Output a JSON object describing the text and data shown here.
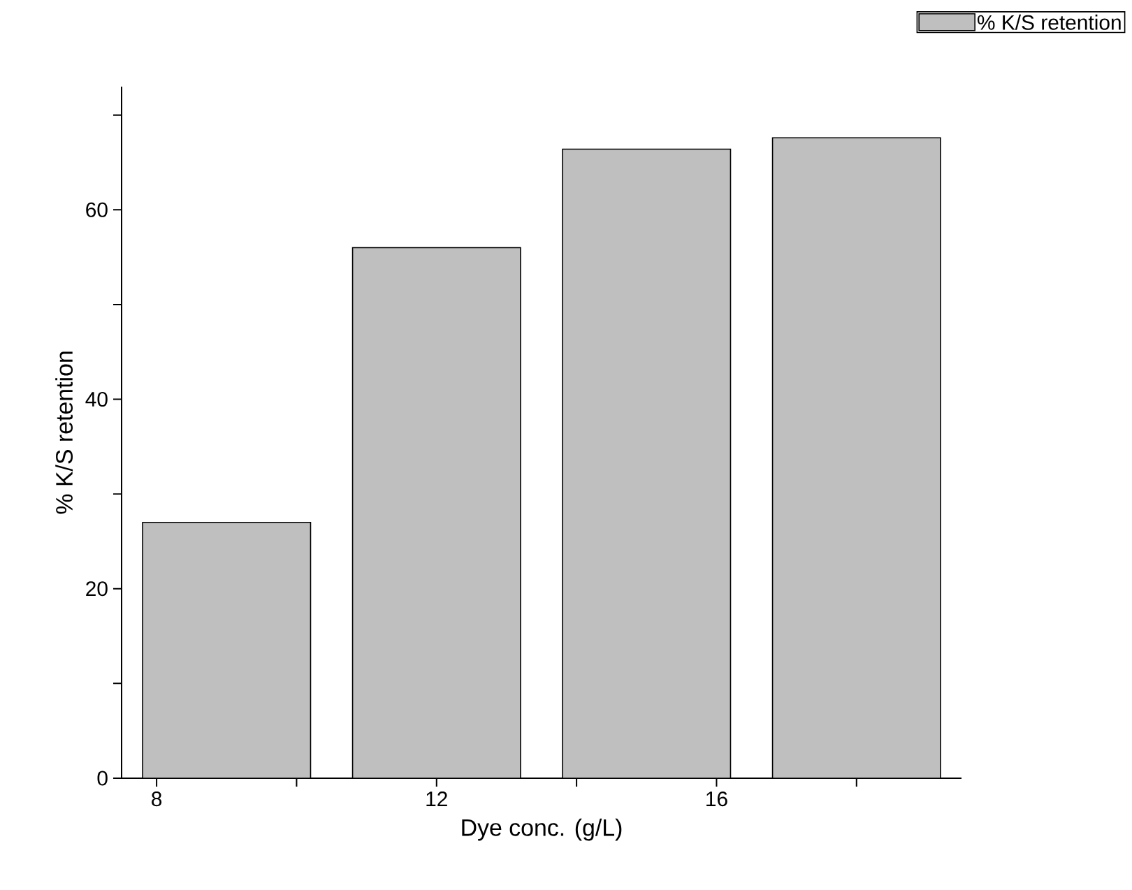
{
  "chart_data": {
    "type": "bar",
    "xlabel": "Dye conc. (g/L)",
    "ylabel": "% K/S retention",
    "x": [
      9,
      12,
      15,
      18
    ],
    "series": [
      {
        "name": "% K/S retention",
        "color": "#bfbfbf",
        "values": [
          27.0,
          56.0,
          66.4,
          67.6
        ]
      }
    ],
    "xlim": [
      7.5,
      19.5
    ],
    "xticks": [
      8,
      {
        "value": 10,
        "label": null
      },
      12,
      {
        "value": 14,
        "label": null
      },
      16,
      {
        "value": 18,
        "label": null
      }
    ],
    "ylim": [
      0,
      73
    ],
    "yticks": [
      0,
      {
        "value": 10,
        "label": null
      },
      20,
      {
        "value": 30,
        "label": null
      },
      40,
      {
        "value": 50,
        "label": null
      },
      60,
      {
        "value": 70,
        "label": null
      }
    ],
    "grid": false,
    "legend": "top right"
  }
}
